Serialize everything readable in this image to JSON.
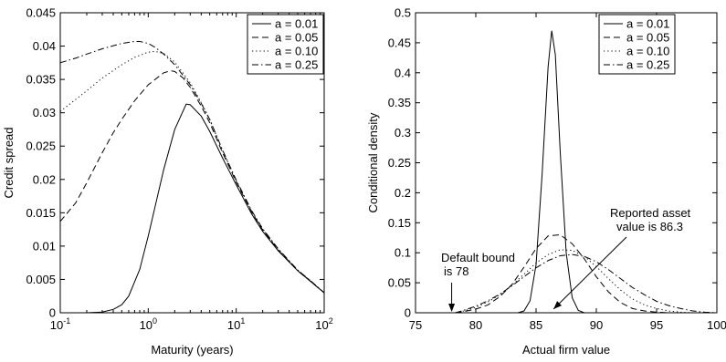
{
  "chart_data": [
    {
      "type": "line",
      "xlabel": "Maturity (years)",
      "ylabel": "Credit spread",
      "xscale": "log",
      "xlim": [
        0.1,
        100
      ],
      "ylim": [
        0,
        0.045
      ],
      "xticks": [
        {
          "value": 0.1,
          "base": "10",
          "exp": "-1"
        },
        {
          "value": 1,
          "base": "10",
          "exp": "0"
        },
        {
          "value": 10,
          "base": "10",
          "exp": "1"
        },
        {
          "value": 100,
          "base": "10",
          "exp": "2"
        }
      ],
      "yticks": [
        {
          "value": 0,
          "label": "0"
        },
        {
          "value": 0.005,
          "label": "0.005"
        },
        {
          "value": 0.01,
          "label": "0.01"
        },
        {
          "value": 0.015,
          "label": "0.015"
        },
        {
          "value": 0.02,
          "label": "0.02"
        },
        {
          "value": 0.025,
          "label": "0.025"
        },
        {
          "value": 0.03,
          "label": "0.03"
        },
        {
          "value": 0.035,
          "label": "0.035"
        },
        {
          "value": 0.04,
          "label": "0.04"
        },
        {
          "value": 0.045,
          "label": "0.045"
        }
      ],
      "legend_position": "top-right",
      "grid": false,
      "series": [
        {
          "name": "a = 0.01",
          "dash": "solid",
          "x": [
            0.1,
            0.2,
            0.3,
            0.4,
            0.5,
            0.6,
            0.8,
            1.0,
            1.5,
            2.0,
            2.7,
            3.0,
            4.0,
            5.0,
            7.0,
            10,
            15,
            20,
            30,
            50,
            70,
            100
          ],
          "y": [
            0,
            0,
            0.0001,
            0.0005,
            0.0012,
            0.0025,
            0.0065,
            0.0115,
            0.0215,
            0.0275,
            0.0313,
            0.0312,
            0.0295,
            0.0272,
            0.0232,
            0.0192,
            0.0148,
            0.0122,
            0.0093,
            0.0063,
            0.0047,
            0.003
          ]
        },
        {
          "name": "a = 0.05",
          "dash": "dashed",
          "x": [
            0.1,
            0.15,
            0.2,
            0.3,
            0.4,
            0.5,
            0.7,
            1.0,
            1.5,
            1.8,
            2.0,
            2.5,
            3.0,
            4.0,
            5.0,
            7.0,
            10,
            15,
            20,
            30,
            50,
            70,
            100
          ],
          "y": [
            0.0137,
            0.0165,
            0.0195,
            0.024,
            0.027,
            0.029,
            0.0318,
            0.0342,
            0.036,
            0.0363,
            0.0362,
            0.0352,
            0.0338,
            0.031,
            0.0285,
            0.024,
            0.0196,
            0.0151,
            0.0124,
            0.0094,
            0.0063,
            0.0047,
            0.003
          ]
        },
        {
          "name": "a = 0.10",
          "dash": "dotted",
          "x": [
            0.1,
            0.15,
            0.2,
            0.3,
            0.5,
            0.7,
            1.0,
            1.2,
            1.5,
            2.0,
            3.0,
            4.0,
            5.0,
            7.0,
            10,
            15,
            20,
            30,
            50,
            70,
            100
          ],
          "y": [
            0.0302,
            0.032,
            0.0333,
            0.0352,
            0.0372,
            0.0383,
            0.0391,
            0.0392,
            0.0389,
            0.0376,
            0.0345,
            0.0315,
            0.029,
            0.0243,
            0.0198,
            0.0152,
            0.0125,
            0.0095,
            0.0064,
            0.0048,
            0.003
          ]
        },
        {
          "name": "a = 0.25",
          "dash": "dashdot",
          "x": [
            0.1,
            0.15,
            0.2,
            0.3,
            0.5,
            0.7,
            0.8,
            1.0,
            1.2,
            1.5,
            2.0,
            3.0,
            4.0,
            5.0,
            7.0,
            10,
            15,
            20,
            30,
            50,
            70,
            100
          ],
          "y": [
            0.0375,
            0.0382,
            0.0388,
            0.0396,
            0.0404,
            0.0407,
            0.0407,
            0.0404,
            0.0398,
            0.0388,
            0.0372,
            0.0342,
            0.0314,
            0.029,
            0.0244,
            0.0199,
            0.0153,
            0.0126,
            0.0096,
            0.0064,
            0.0048,
            0.003
          ]
        }
      ]
    },
    {
      "type": "line",
      "xlabel": "Actual firm value",
      "ylabel": "Conditional density",
      "xlim": [
        75,
        100
      ],
      "ylim": [
        0,
        0.5
      ],
      "xticks": [
        {
          "value": 75,
          "label": "75"
        },
        {
          "value": 80,
          "label": "80"
        },
        {
          "value": 85,
          "label": "85"
        },
        {
          "value": 90,
          "label": "90"
        },
        {
          "value": 95,
          "label": "95"
        },
        {
          "value": 100,
          "label": "100"
        }
      ],
      "yticks": [
        {
          "value": 0,
          "label": "0"
        },
        {
          "value": 0.05,
          "label": "0.05"
        },
        {
          "value": 0.1,
          "label": "0.1"
        },
        {
          "value": 0.15,
          "label": "0.15"
        },
        {
          "value": 0.2,
          "label": "0.2"
        },
        {
          "value": 0.25,
          "label": "0.25"
        },
        {
          "value": 0.3,
          "label": "0.3"
        },
        {
          "value": 0.35,
          "label": "0.35"
        },
        {
          "value": 0.4,
          "label": "0.4"
        },
        {
          "value": 0.45,
          "label": "0.45"
        },
        {
          "value": 0.5,
          "label": "0.5"
        }
      ],
      "legend_position": "top-right",
      "grid": false,
      "series": [
        {
          "name": "a = 0.01",
          "dash": "solid",
          "x": [
            83.5,
            84.0,
            84.5,
            85.0,
            85.5,
            86.0,
            86.3,
            86.6,
            87.0,
            87.5,
            88.0,
            88.5,
            89.0
          ],
          "y": [
            0,
            0.003,
            0.02,
            0.08,
            0.23,
            0.41,
            0.47,
            0.43,
            0.27,
            0.1,
            0.025,
            0.004,
            0
          ]
        },
        {
          "name": "a = 0.05",
          "dash": "dashed",
          "x": [
            78.3,
            79.0,
            80.0,
            81.0,
            82.0,
            83.0,
            84.0,
            85.0,
            86.0,
            87.0,
            88.0,
            89.0,
            90.0,
            91.0,
            92.0,
            93.0,
            94.0,
            95.0,
            96.0
          ],
          "y": [
            0,
            0.002,
            0.006,
            0.013,
            0.027,
            0.047,
            0.076,
            0.107,
            0.128,
            0.13,
            0.115,
            0.09,
            0.06,
            0.035,
            0.017,
            0.007,
            0.003,
            0.001,
            0
          ]
        },
        {
          "name": "a = 0.10",
          "dash": "dotted",
          "x": [
            78.3,
            79.0,
            80.0,
            81.0,
            82.0,
            83.0,
            84.0,
            85.0,
            86.0,
            87.0,
            88.0,
            89.0,
            90.0,
            91.0,
            92.0,
            93.0,
            94.0,
            95.0,
            96.0,
            97.0,
            98.0
          ],
          "y": [
            0,
            0.003,
            0.009,
            0.018,
            0.03,
            0.046,
            0.064,
            0.083,
            0.097,
            0.105,
            0.104,
            0.094,
            0.077,
            0.057,
            0.038,
            0.023,
            0.013,
            0.007,
            0.003,
            0.001,
            0
          ]
        },
        {
          "name": "a = 0.25",
          "dash": "dashdot",
          "x": [
            78.3,
            79.0,
            80.0,
            81.0,
            82.0,
            83.0,
            84.0,
            85.0,
            86.0,
            87.0,
            88.0,
            89.0,
            90.0,
            91.0,
            92.0,
            93.0,
            94.0,
            95.0,
            96.0,
            97.0,
            98.0,
            99.0,
            100.0
          ],
          "y": [
            0,
            0.004,
            0.011,
            0.02,
            0.031,
            0.045,
            0.06,
            0.075,
            0.087,
            0.095,
            0.097,
            0.094,
            0.085,
            0.072,
            0.057,
            0.042,
            0.03,
            0.019,
            0.012,
            0.007,
            0.003,
            0.001,
            0
          ]
        }
      ],
      "annotations": [
        {
          "lines": [
            "Default bound",
            "is 78"
          ],
          "target_x": 78,
          "target_y": 0
        },
        {
          "lines": [
            "Reported asset",
            "value is 86.3"
          ],
          "target_x": 86.3,
          "target_y": 0
        }
      ]
    }
  ]
}
